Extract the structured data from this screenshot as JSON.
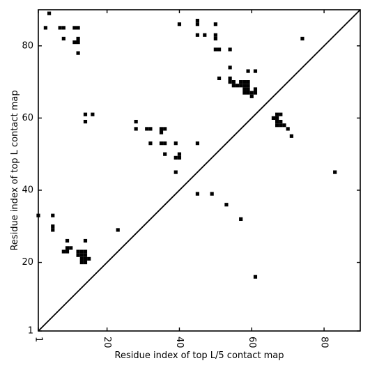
{
  "chart_data": {
    "type": "scatter",
    "marker": "square",
    "xlabel": "Residue index of top L/5 contact map",
    "ylabel": "Residue index of top L contact map",
    "xlim": [
      1,
      90
    ],
    "ylim": [
      1,
      90
    ],
    "x_ticks": [
      1,
      20,
      40,
      60,
      80
    ],
    "y_ticks": [
      1,
      20,
      40,
      60,
      80
    ],
    "x_tick_labels": [
      "1",
      "20",
      "40",
      "60",
      "80"
    ],
    "y_tick_labels": [
      "1",
      "20",
      "40",
      "60",
      "80"
    ],
    "diagonal": true,
    "grid": false,
    "color": "#000000",
    "points": [
      [
        4,
        89
      ],
      [
        3,
        85
      ],
      [
        7,
        85
      ],
      [
        8,
        85
      ],
      [
        11,
        85
      ],
      [
        12,
        85
      ],
      [
        8,
        82
      ],
      [
        12,
        82
      ],
      [
        11,
        81
      ],
      [
        12,
        81
      ],
      [
        12,
        78
      ],
      [
        40,
        86
      ],
      [
        45,
        87
      ],
      [
        45,
        86
      ],
      [
        50,
        86
      ],
      [
        45,
        83
      ],
      [
        47,
        83
      ],
      [
        50,
        83
      ],
      [
        50,
        82
      ],
      [
        50,
        79
      ],
      [
        51,
        79
      ],
      [
        54,
        79
      ],
      [
        74,
        82
      ],
      [
        54,
        74
      ],
      [
        51,
        71
      ],
      [
        59,
        73
      ],
      [
        61,
        73
      ],
      [
        54,
        71
      ],
      [
        54,
        70
      ],
      [
        55,
        70
      ],
      [
        55,
        69
      ],
      [
        56,
        69
      ],
      [
        57,
        69
      ],
      [
        57,
        70
      ],
      [
        58,
        70
      ],
      [
        59,
        70
      ],
      [
        58,
        69
      ],
      [
        59,
        69
      ],
      [
        58,
        68
      ],
      [
        59,
        68
      ],
      [
        58,
        67
      ],
      [
        59,
        67
      ],
      [
        60,
        67
      ],
      [
        61,
        67
      ],
      [
        60,
        66
      ],
      [
        61,
        68
      ],
      [
        14,
        61
      ],
      [
        16,
        61
      ],
      [
        14,
        59
      ],
      [
        28,
        59
      ],
      [
        28,
        57
      ],
      [
        31,
        57
      ],
      [
        32,
        57
      ],
      [
        35,
        57
      ],
      [
        36,
        57
      ],
      [
        35,
        56
      ],
      [
        32,
        53
      ],
      [
        35,
        53
      ],
      [
        36,
        53
      ],
      [
        39,
        53
      ],
      [
        45,
        53
      ],
      [
        36,
        50
      ],
      [
        40,
        50
      ],
      [
        39,
        49
      ],
      [
        40,
        49
      ],
      [
        67,
        61
      ],
      [
        68,
        61
      ],
      [
        66,
        60
      ],
      [
        67,
        60
      ],
      [
        67,
        59
      ],
      [
        68,
        59
      ],
      [
        67,
        58
      ],
      [
        68,
        58
      ],
      [
        69,
        58
      ],
      [
        70,
        57
      ],
      [
        71,
        55
      ],
      [
        39,
        45
      ],
      [
        83,
        45
      ],
      [
        45,
        39
      ],
      [
        49,
        39
      ],
      [
        53,
        36
      ],
      [
        57,
        32
      ],
      [
        1,
        33
      ],
      [
        5,
        33
      ],
      [
        5,
        30
      ],
      [
        5,
        29
      ],
      [
        23,
        29
      ],
      [
        9,
        26
      ],
      [
        14,
        26
      ],
      [
        9,
        24
      ],
      [
        10,
        24
      ],
      [
        8,
        23
      ],
      [
        9,
        23
      ],
      [
        12,
        23
      ],
      [
        13,
        23
      ],
      [
        14,
        23
      ],
      [
        12,
        22
      ],
      [
        13,
        22
      ],
      [
        14,
        22
      ],
      [
        13,
        21
      ],
      [
        14,
        21
      ],
      [
        15,
        21
      ],
      [
        13,
        20
      ],
      [
        14,
        20
      ],
      [
        61,
        16
      ]
    ]
  }
}
